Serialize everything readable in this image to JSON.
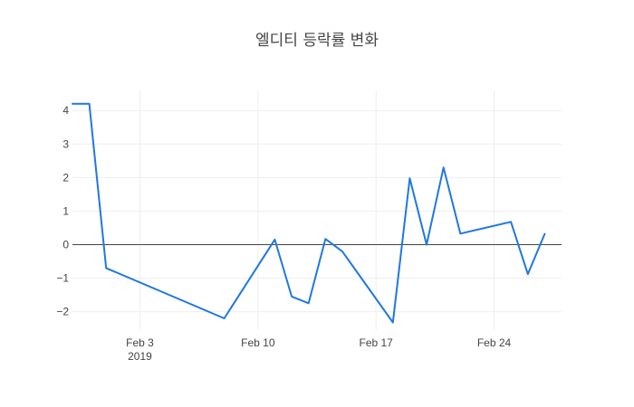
{
  "chart_data": {
    "type": "line",
    "title": "엘디티 등락률 변화",
    "xlabel": "",
    "ylabel": "",
    "x_ticks": [
      {
        "date": "2019-02-03",
        "label": "Feb 3",
        "sublabel": "2019"
      },
      {
        "date": "2019-02-10",
        "label": "Feb 10",
        "sublabel": ""
      },
      {
        "date": "2019-02-17",
        "label": "Feb 17",
        "sublabel": ""
      },
      {
        "date": "2019-02-24",
        "label": "Feb 24",
        "sublabel": ""
      }
    ],
    "y_ticks": [
      -2,
      -1,
      0,
      1,
      2,
      3,
      4
    ],
    "y_tick_labels": [
      "−2",
      "−1",
      "0",
      "1",
      "2",
      "3",
      "4"
    ],
    "xlim": [
      "2019-01-30",
      "2019-02-28"
    ],
    "ylim": [
      -2.55,
      4.6
    ],
    "grid": true,
    "zero_line": true,
    "line_color": "#1f77e4",
    "series": [
      {
        "x": [
          "2019-01-30",
          "2019-01-31",
          "2019-02-01",
          "2019-02-08",
          "2019-02-11",
          "2019-02-12",
          "2019-02-13",
          "2019-02-14",
          "2019-02-15",
          "2019-02-18",
          "2019-02-19",
          "2019-02-20",
          "2019-02-21",
          "2019-02-22",
          "2019-02-25",
          "2019-02-26",
          "2019-02-27"
        ],
        "values": [
          4.2,
          4.2,
          -0.7,
          -2.2,
          0.15,
          -1.55,
          -1.75,
          0.17,
          -0.2,
          -2.32,
          1.98,
          0.0,
          2.3,
          0.33,
          0.68,
          -0.88,
          0.32
        ]
      }
    ]
  }
}
